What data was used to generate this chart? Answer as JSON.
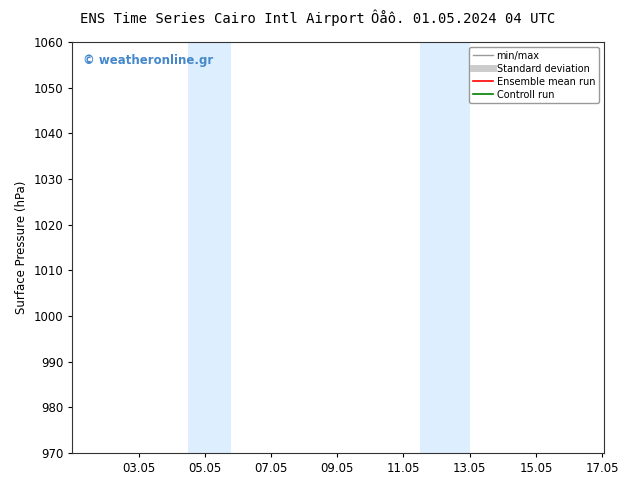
{
  "title_left": "ENS Time Series Cairo Intl Airport",
  "title_right": "Ôåô. 01.05.2024 04 UTC",
  "ylabel": "Surface Pressure (hPa)",
  "ylim": [
    970,
    1060
  ],
  "yticks": [
    970,
    980,
    990,
    1000,
    1010,
    1020,
    1030,
    1040,
    1050,
    1060
  ],
  "xlim": [
    1.0,
    17.05
  ],
  "xtick_labels": [
    "03.05",
    "05.05",
    "07.05",
    "09.05",
    "11.05",
    "13.05",
    "15.05",
    "17.05"
  ],
  "xtick_positions": [
    3,
    5,
    7,
    9,
    11,
    13,
    15,
    17
  ],
  "shade_bands": [
    {
      "x_start": 4.5,
      "x_end": 5.8
    },
    {
      "x_start": 11.5,
      "x_end": 13.0
    }
  ],
  "shade_color": "#ddeeff",
  "watermark_text": "© weatheronline.gr",
  "watermark_color": "#4488cc",
  "legend_entries": [
    {
      "label": "min/max",
      "color": "#999999",
      "linewidth": 1.0,
      "linestyle": "-"
    },
    {
      "label": "Standard deviation",
      "color": "#cccccc",
      "linewidth": 5,
      "linestyle": "-"
    },
    {
      "label": "Ensemble mean run",
      "color": "red",
      "linewidth": 1.2,
      "linestyle": "-"
    },
    {
      "label": "Controll run",
      "color": "green",
      "linewidth": 1.2,
      "linestyle": "-"
    }
  ],
  "bg_color": "#ffffff",
  "plot_bg_color": "#ffffff",
  "grid_color": "#dddddd",
  "title_fontsize": 10,
  "tick_fontsize": 8.5,
  "ylabel_fontsize": 8.5,
  "watermark_fontsize": 8.5
}
